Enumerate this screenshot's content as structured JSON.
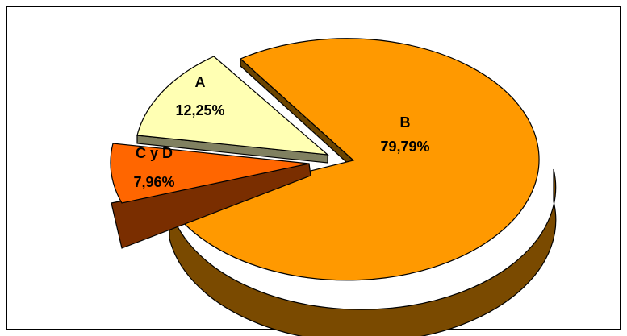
{
  "chart_data": {
    "type": "pie",
    "style": "3d-exploded",
    "title": "",
    "categories": [
      "A",
      "B",
      "C y D"
    ],
    "values": [
      12.25,
      79.79,
      7.96
    ],
    "value_labels": [
      "12,25%",
      "79,79%",
      "7,96%"
    ],
    "colors": {
      "A": "#FFFFB3",
      "B": "#FF9900",
      "C y D": "#FF6600"
    },
    "legend": "none",
    "grid": false
  }
}
